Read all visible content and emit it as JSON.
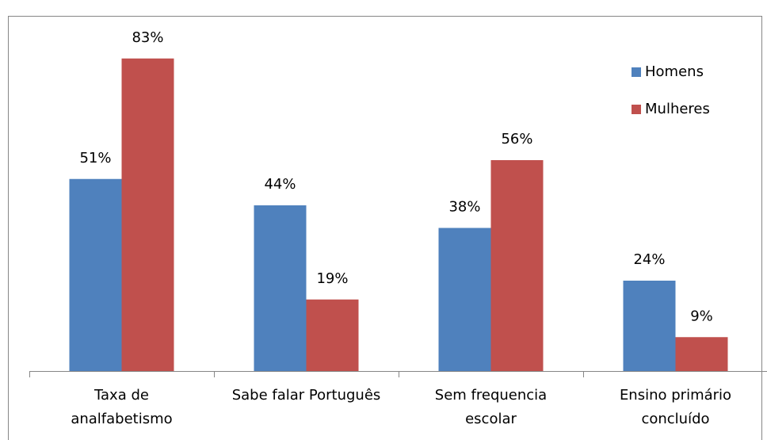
{
  "chart_data": {
    "type": "bar",
    "categories": [
      "Taxa de\nanalfabetismo",
      "Sabe falar Português",
      "Sem frequencia\nescolar",
      "Ensino primário\nconcluído"
    ],
    "series": [
      {
        "name": "Homens",
        "color": "#4f81bd",
        "values": [
          51,
          44,
          38,
          24
        ],
        "value_labels": [
          "51%",
          "44%",
          "38%",
          "24%"
        ]
      },
      {
        "name": "Mulheres",
        "color": "#c0504d",
        "values": [
          83,
          19,
          56,
          9
        ],
        "value_labels": [
          "83%",
          "19%",
          "56%",
          "9%"
        ]
      }
    ],
    "legend": "upper right"
  }
}
